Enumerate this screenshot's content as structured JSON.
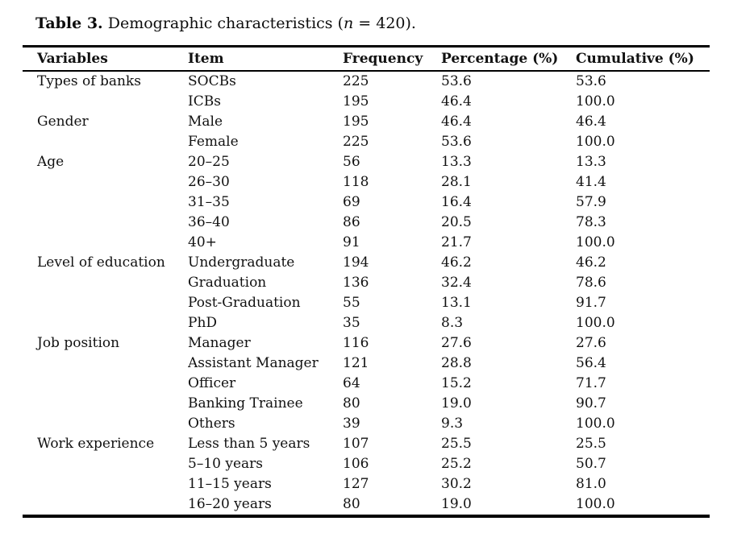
{
  "title": {
    "label": "Table 3.",
    "pre": " Demographic characteristics (",
    "n": "n",
    "post": " = 420)."
  },
  "table": {
    "columns": [
      "Variables",
      "Item",
      "Frequency",
      "Percentage (%)",
      "Cumulative (%)"
    ],
    "rows": [
      [
        "Types of banks",
        "SOCBs",
        "225",
        "53.6",
        "53.6"
      ],
      [
        "",
        "ICBs",
        "195",
        "46.4",
        "100.0"
      ],
      [
        "Gender",
        "Male",
        "195",
        "46.4",
        "46.4"
      ],
      [
        "",
        "Female",
        "225",
        "53.6",
        "100.0"
      ],
      [
        "Age",
        "20–25",
        "56",
        "13.3",
        "13.3"
      ],
      [
        "",
        "26–30",
        "118",
        "28.1",
        "41.4"
      ],
      [
        "",
        "31–35",
        "69",
        "16.4",
        "57.9"
      ],
      [
        "",
        "36–40",
        "86",
        "20.5",
        "78.3"
      ],
      [
        "",
        "40+",
        "91",
        "21.7",
        "100.0"
      ],
      [
        "Level of education",
        "Undergraduate",
        "194",
        "46.2",
        "46.2"
      ],
      [
        "",
        "Graduation",
        "136",
        "32.4",
        "78.6"
      ],
      [
        "",
        "Post-Graduation",
        "55",
        "13.1",
        "91.7"
      ],
      [
        "",
        "PhD",
        "35",
        "8.3",
        "100.0"
      ],
      [
        "Job position",
        "Manager",
        "116",
        "27.6",
        "27.6"
      ],
      [
        "",
        "Assistant Manager",
        "121",
        "28.8",
        "56.4"
      ],
      [
        "",
        "Officer",
        "64",
        "15.2",
        "71.7"
      ],
      [
        "",
        "Banking Trainee",
        "80",
        "19.0",
        "90.7"
      ],
      [
        "",
        "Others",
        "39",
        "9.3",
        "100.0"
      ],
      [
        "Work experience",
        "Less than 5 years",
        "107",
        "25.5",
        "25.5"
      ],
      [
        "",
        "5–10 years",
        "106",
        "25.2",
        "50.7"
      ],
      [
        "",
        "11–15 years",
        "127",
        "30.2",
        "81.0"
      ],
      [
        "",
        "16–20 years",
        "80",
        "19.0",
        "100.0"
      ]
    ]
  }
}
